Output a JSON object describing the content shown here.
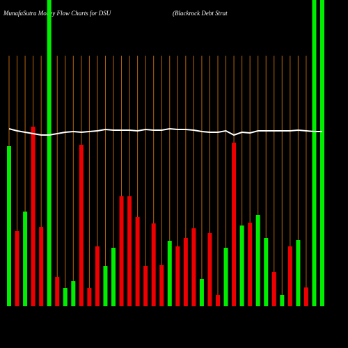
{
  "chart_data": {
    "type": "bar",
    "title": "MunafaSutra  Money Flow  Charts for DSU",
    "subtitle": "(Blackrock Debt Strat",
    "categories": [
      null,
      null,
      null,
      null,
      null,
      null,
      null,
      null,
      null,
      null,
      null,
      null,
      null,
      null,
      null,
      null,
      null,
      null,
      null,
      null,
      null,
      null,
      null,
      null,
      null,
      null,
      null,
      null,
      null,
      null,
      null,
      null,
      null,
      null,
      null,
      null,
      null,
      null,
      null,
      null
    ],
    "values": [
      230,
      108,
      136,
      258,
      114,
      440,
      42,
      26,
      36,
      232,
      26,
      86,
      58,
      84,
      158,
      158,
      128,
      58,
      119,
      59,
      94,
      86,
      98,
      112,
      39,
      105,
      16,
      84,
      235,
      116,
      120,
      131,
      98,
      49,
      16,
      86,
      95,
      27,
      440,
      440
    ],
    "colors": [
      "#00ee00",
      "#ee0000",
      "#00ee00",
      "#ee0000",
      "#ee0000",
      "#00ee00",
      "#ee0000",
      "#00ee00",
      "#00ee00",
      "#ee0000",
      "#ee0000",
      "#ee0000",
      "#00ee00",
      "#00ee00",
      "#ee0000",
      "#ee0000",
      "#ee0000",
      "#ee0000",
      "#ee0000",
      "#ee0000",
      "#00ee00",
      "#ee0000",
      "#ee0000",
      "#ee0000",
      "#00ee00",
      "#ee0000",
      "#ee0000",
      "#00ee00",
      "#ee0000",
      "#00ee00",
      "#ee0000",
      "#00ee00",
      "#00ee00",
      "#ee0000",
      "#00ee00",
      "#ee0000",
      "#00ee00",
      "#ee0000",
      "#00ee00",
      "#00ee00"
    ],
    "line": {
      "color": "#ffffff",
      "values": [
        255,
        252,
        250,
        248,
        246,
        246,
        248,
        250,
        251,
        250,
        251,
        252,
        254,
        253,
        253,
        253,
        252,
        254,
        253,
        253,
        255,
        254,
        254,
        253,
        251,
        250,
        250,
        252,
        246,
        250,
        249,
        252,
        252,
        252,
        252,
        252,
        253,
        252,
        251,
        251
      ]
    },
    "grid_color": "#b8650a",
    "ylim": [
      0,
      440
    ]
  }
}
